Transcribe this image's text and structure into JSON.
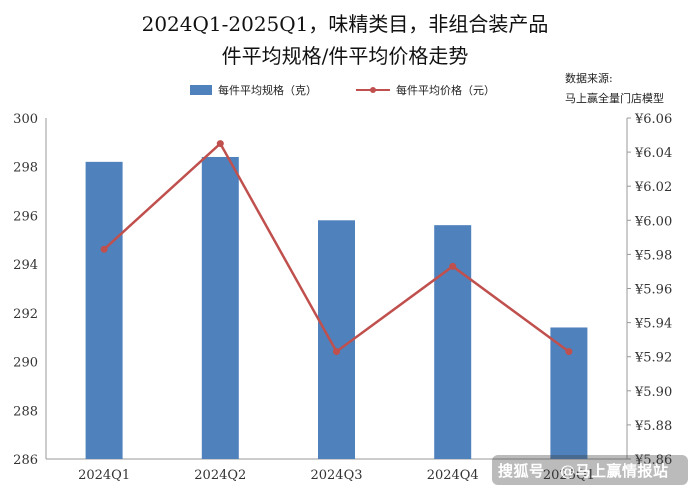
{
  "title_line_1": "2024Q1-2025Q1，味精类目，非组合装产品",
  "title_line_2": "件平均规格/件平均价格走势",
  "source_line_1": "数据来源:",
  "source_line_2": "马上赢全量门店模型",
  "watermark_left": "搜狐号",
  "watermark_right": "@马上赢情报站",
  "colors": {
    "bar": "#4f81bd",
    "line": "#c0504d",
    "axis": "#999999",
    "text": "#222222",
    "background": "#ffffff"
  },
  "chart_data": {
    "type": "bar+line",
    "categories": [
      "2024Q1",
      "2024Q2",
      "2024Q3",
      "2024Q4",
      "2025Q1"
    ],
    "series": [
      {
        "name": "每件平均规格（克）",
        "type": "bar",
        "axis": "left",
        "values": [
          298.2,
          298.4,
          295.8,
          295.6,
          291.4
        ]
      },
      {
        "name": "每件平均价格（元）",
        "type": "line",
        "axis": "right",
        "values": [
          5.983,
          6.045,
          5.923,
          5.973,
          5.923
        ]
      }
    ],
    "y_left": {
      "min": 286,
      "max": 300,
      "step": 2,
      "ticks": [
        "286",
        "288",
        "290",
        "292",
        "294",
        "296",
        "298",
        "300"
      ]
    },
    "y_right": {
      "min": 5.86,
      "max": 6.06,
      "step": 0.02,
      "ticks": [
        "¥5.86",
        "¥5.88",
        "¥5.90",
        "¥5.92",
        "¥5.94",
        "¥5.96",
        "¥5.98",
        "¥6.00",
        "¥6.02",
        "¥6.04",
        "¥6.06"
      ]
    },
    "grid": false,
    "legend_position": "top"
  }
}
